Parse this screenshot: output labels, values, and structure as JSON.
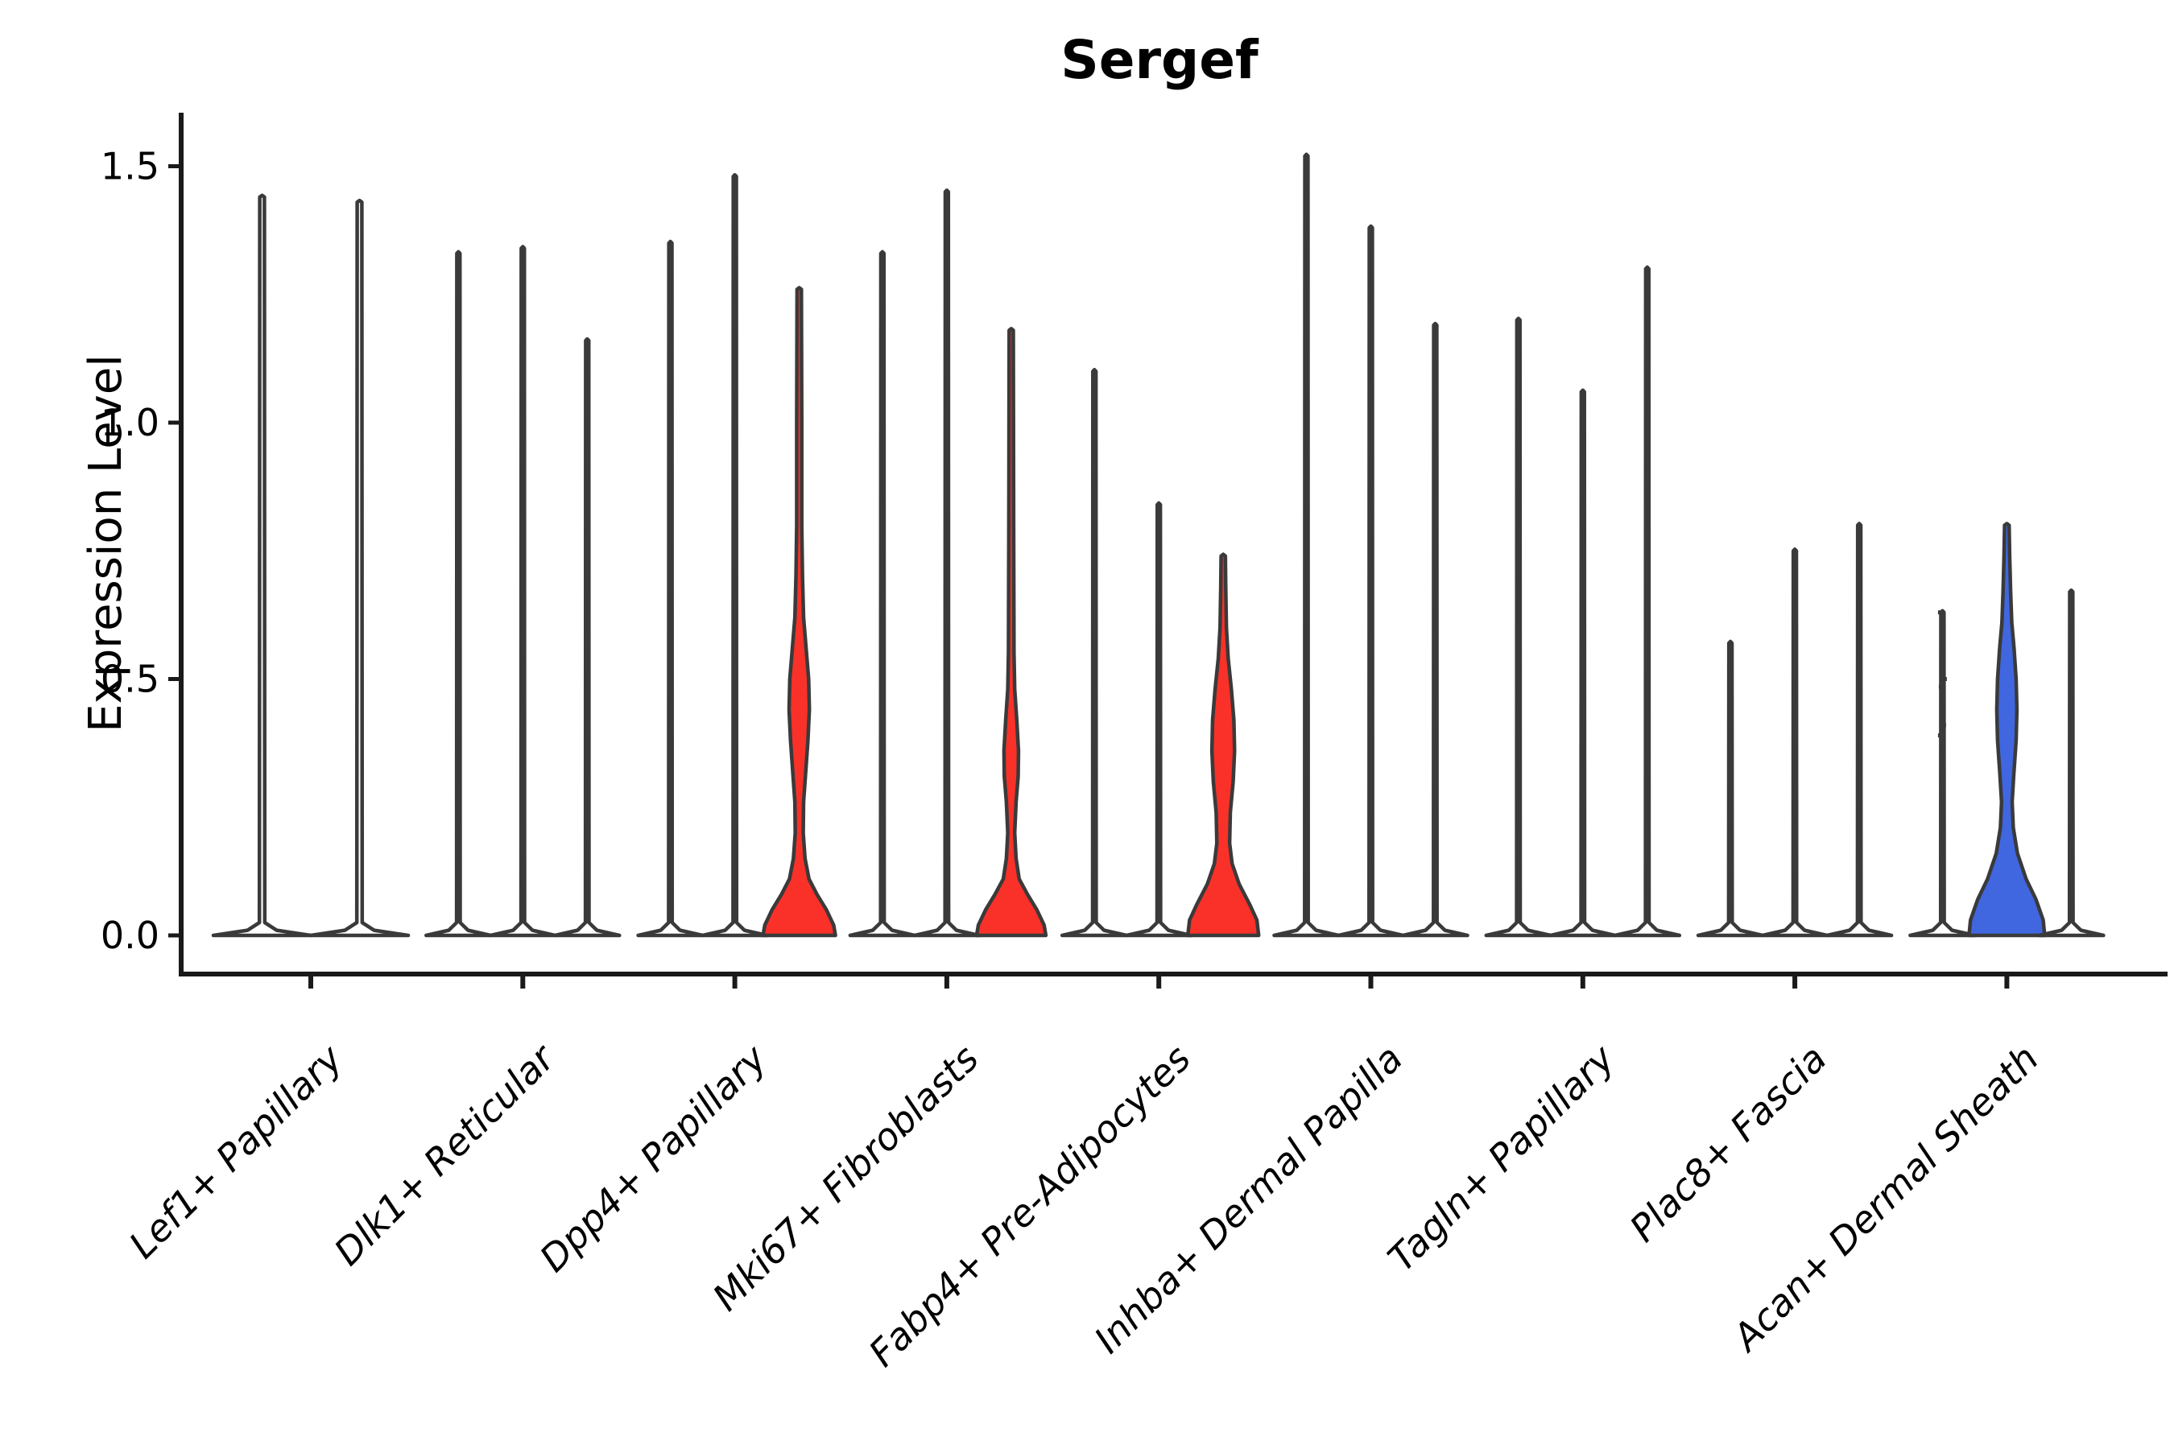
{
  "colors": {
    "violin_outline": "#3A3A3A",
    "red_fill": "#F93129",
    "blue_fill": "#4067E0",
    "axis": "#1A1A1A",
    "text": "#000000",
    "background": "#FFFFFF"
  },
  "chart_data": {
    "type": "violin",
    "title": "Sergef",
    "ylabel": "Expression Level",
    "xlabel": "",
    "ylim": [
      0,
      1.6
    ],
    "yticks": [
      0,
      0.5,
      1.0,
      1.5
    ],
    "ytick_labels": [
      "0.0",
      "0.5",
      "1.0",
      "1.5"
    ],
    "grid": false,
    "legend": "none",
    "categories": [
      "Lef1+ Papillary",
      "Dlk1+ Reticular",
      "Dpp4+ Papillary",
      "Mki67+ Fibroblasts",
      "Fabp4+ Pre-Adipocytes",
      "Inhba+ Dermal Papilla",
      "Tagln+ Papillary",
      "Plac8+ Fascia",
      "Acan+ Dermal Sheath"
    ],
    "groups": [
      {
        "label": "Lef1+ Papillary",
        "step": 121,
        "violins": [
          {
            "max": 1.44,
            "fill": null
          },
          {
            "max": 1.43,
            "fill": null
          }
        ]
      },
      {
        "label": "Dlk1+ Reticular",
        "step": 80,
        "violins": [
          {
            "max": 1.33,
            "fill": null
          },
          {
            "max": 1.34,
            "fill": null
          },
          {
            "max": 1.16,
            "fill": null
          }
        ]
      },
      {
        "label": "Dpp4+ Papillary",
        "step": 80,
        "violins": [
          {
            "max": 1.35,
            "fill": null
          },
          {
            "max": 1.48,
            "fill": null
          },
          {
            "max": 1.26,
            "fill": "red",
            "width": 90,
            "profile": [
              [
                0,
                1
              ],
              [
                0.02,
                0.95
              ],
              [
                0.05,
                0.75
              ],
              [
                0.08,
                0.49
              ],
              [
                0.11,
                0.27
              ],
              [
                0.15,
                0.16
              ],
              [
                0.2,
                0.11
              ],
              [
                0.26,
                0.12
              ],
              [
                0.32,
                0.18
              ],
              [
                0.38,
                0.24
              ],
              [
                0.44,
                0.28
              ],
              [
                0.5,
                0.26
              ],
              [
                0.56,
                0.19
              ],
              [
                0.62,
                0.12
              ],
              [
                0.7,
                0.09
              ],
              [
                0.8,
                0.07
              ],
              [
                1.0,
                0.07
              ],
              [
                1.26,
                0.06
              ]
            ]
          }
        ]
      },
      {
        "label": "Mki67+ Fibroblasts",
        "step": 80,
        "violins": [
          {
            "max": 1.33,
            "fill": null
          },
          {
            "max": 1.45,
            "fill": null
          },
          {
            "max": 1.18,
            "fill": "red",
            "width": 86,
            "profile": [
              [
                0,
                1
              ],
              [
                0.02,
                0.95
              ],
              [
                0.05,
                0.74
              ],
              [
                0.08,
                0.47
              ],
              [
                0.11,
                0.23
              ],
              [
                0.15,
                0.14
              ],
              [
                0.2,
                0.1
              ],
              [
                0.26,
                0.14
              ],
              [
                0.31,
                0.2
              ],
              [
                0.36,
                0.21
              ],
              [
                0.42,
                0.16
              ],
              [
                0.48,
                0.1
              ],
              [
                0.55,
                0.08
              ],
              [
                0.8,
                0.07
              ],
              [
                1.18,
                0.06
              ]
            ]
          }
        ]
      },
      {
        "label": "Fabp4+ Pre-Adipocytes",
        "step": 80,
        "violins": [
          {
            "max": 1.1,
            "fill": null
          },
          {
            "max": 0.84,
            "fill": null
          },
          {
            "max": 0.74,
            "fill": "red",
            "width": 88,
            "profile": [
              [
                0,
                1
              ],
              [
                0.03,
                0.95
              ],
              [
                0.06,
                0.75
              ],
              [
                0.1,
                0.45
              ],
              [
                0.14,
                0.25
              ],
              [
                0.18,
                0.18
              ],
              [
                0.24,
                0.2
              ],
              [
                0.3,
                0.28
              ],
              [
                0.36,
                0.32
              ],
              [
                0.42,
                0.3
              ],
              [
                0.48,
                0.23
              ],
              [
                0.54,
                0.14
              ],
              [
                0.6,
                0.09
              ],
              [
                0.68,
                0.07
              ],
              [
                0.74,
                0.06
              ]
            ]
          }
        ]
      },
      {
        "label": "Inhba+ Dermal Papilla",
        "step": 80,
        "violins": [
          {
            "max": 1.52,
            "fill": null
          },
          {
            "max": 1.38,
            "fill": null
          },
          {
            "max": 1.19,
            "fill": null
          }
        ]
      },
      {
        "label": "Tagln+ Papillary",
        "step": 80,
        "violins": [
          {
            "max": 1.2,
            "fill": null
          },
          {
            "max": 1.06,
            "fill": null
          },
          {
            "max": 1.3,
            "fill": null
          }
        ]
      },
      {
        "label": "Plac8+ Fascia",
        "step": 80,
        "violins": [
          {
            "max": 0.57,
            "fill": null
          },
          {
            "max": 0.75,
            "fill": null
          },
          {
            "max": 0.8,
            "fill": null
          }
        ]
      },
      {
        "label": "Acan+ Dermal Sheath",
        "step": 80,
        "violins": [
          {
            "max": 0.63,
            "fill": null,
            "points": [
              0.63,
              0.6,
              0.57,
              0.5,
              0.485,
              0.45,
              0.41,
              0.39,
              0.29
            ]
          },
          {
            "max": 0.8,
            "fill": "blue",
            "width": 94,
            "profile": [
              [
                0,
                1
              ],
              [
                0.03,
                0.96
              ],
              [
                0.07,
                0.77
              ],
              [
                0.11,
                0.51
              ],
              [
                0.16,
                0.28
              ],
              [
                0.21,
                0.17
              ],
              [
                0.26,
                0.14
              ],
              [
                0.31,
                0.18
              ],
              [
                0.38,
                0.245
              ],
              [
                0.44,
                0.266
              ],
              [
                0.5,
                0.245
              ],
              [
                0.56,
                0.19
              ],
              [
                0.61,
                0.13
              ],
              [
                0.67,
                0.1
              ],
              [
                0.74,
                0.075
              ],
              [
                0.8,
                0.06
              ]
            ]
          },
          {
            "max": 0.67,
            "fill": null
          }
        ]
      }
    ]
  }
}
